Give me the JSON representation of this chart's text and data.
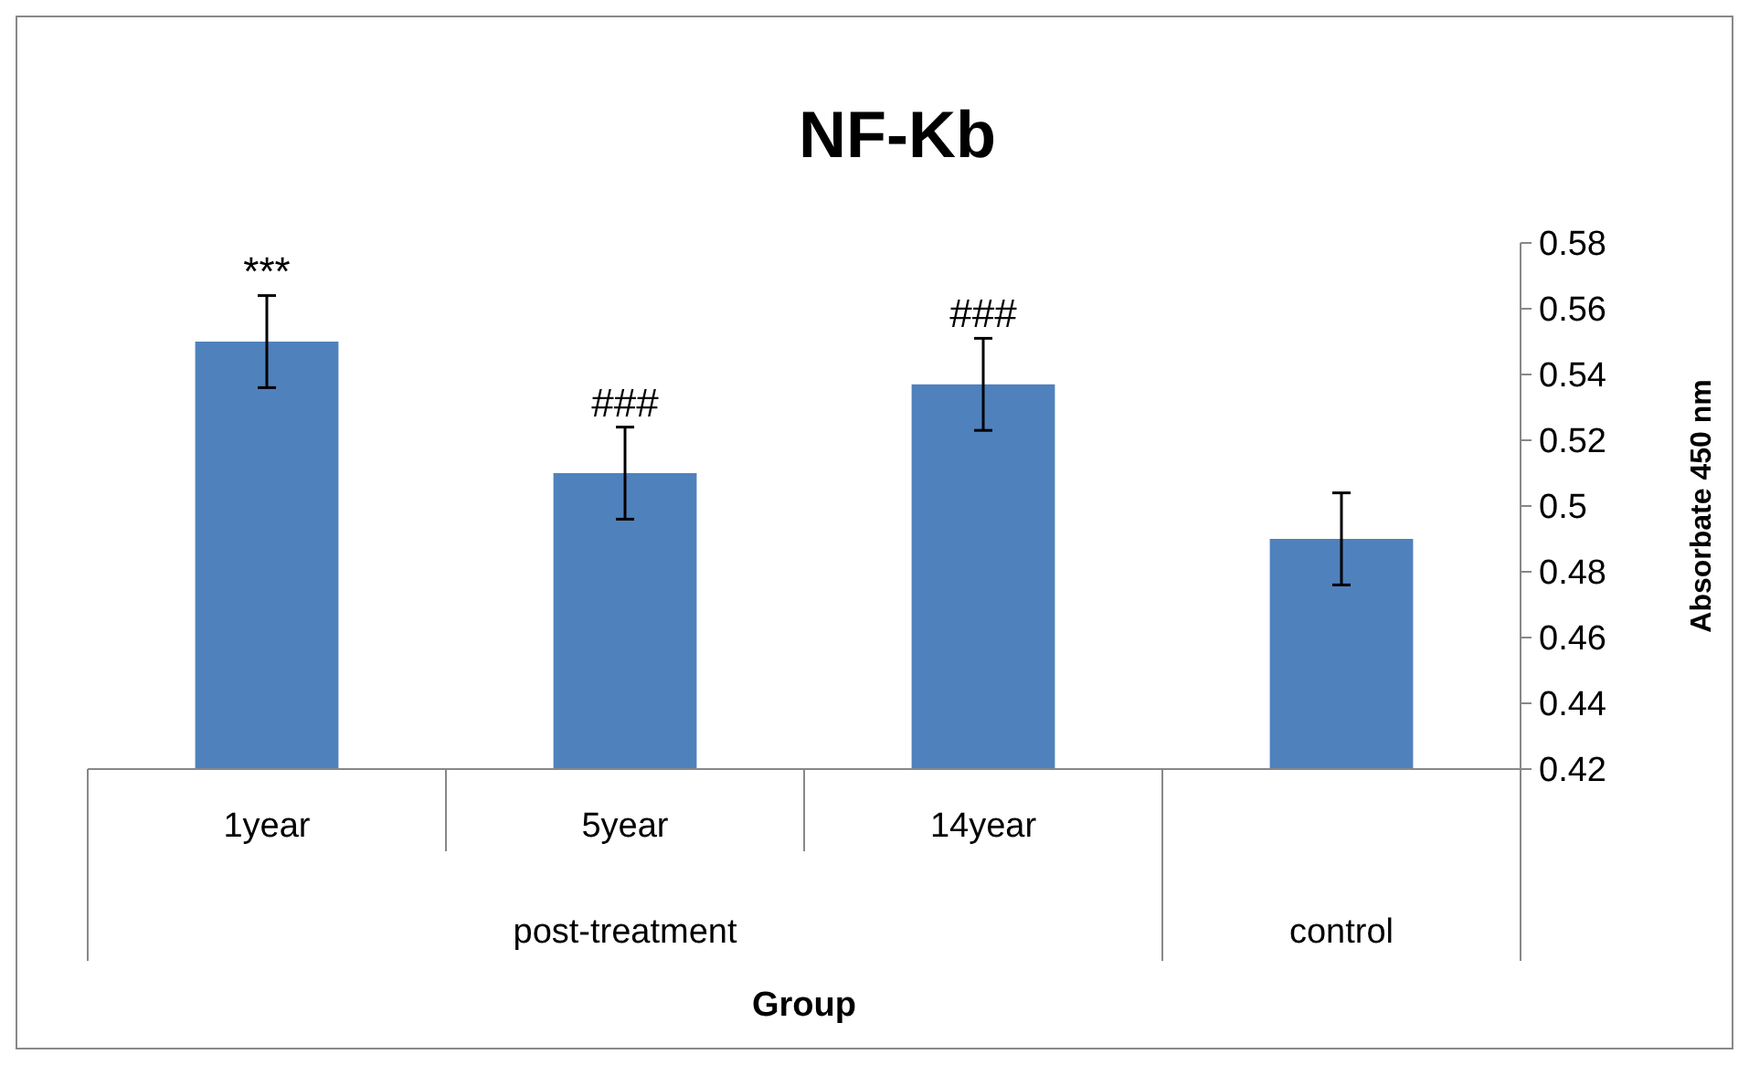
{
  "chart_data": {
    "type": "bar",
    "title": "NF-Kb",
    "xlabel": "Group",
    "ylabel": "Absorbate 450 nm",
    "categories": [
      "1year",
      "5year",
      "14year",
      null
    ],
    "series": [
      {
        "color": "#4f81bd",
        "values": [
          0.55,
          0.51,
          0.537,
          0.49
        ],
        "errors": [
          0.014,
          0.014,
          0.014,
          0.014
        ]
      }
    ],
    "ylim": [
      0.42,
      0.58
    ],
    "yticks": [
      0.42,
      0.44,
      0.46,
      0.48,
      0.5,
      0.52,
      0.54,
      0.56,
      0.58
    ],
    "annotations": [
      {
        "text": "***",
        "x": "1year",
        "y": 0.55
      },
      {
        "text": "###",
        "x": "5year",
        "y": 0.51
      },
      {
        "text": "###",
        "x": "14year",
        "y": 0.537
      },
      "post-treatment",
      "control"
    ],
    "grid": false
  }
}
